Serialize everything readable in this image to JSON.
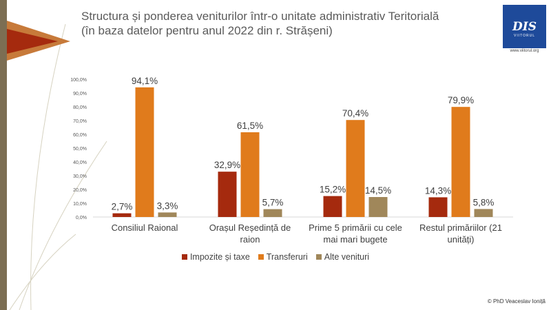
{
  "title": {
    "line1": "Structura și ponderea veniturilor într-o unitate administrativ Teritorială",
    "line2": "(în baza datelor pentru anul 2022 din r. Strășeni)"
  },
  "logo": {
    "text": "DIS",
    "sub": "VIITORUL",
    "url": "www.viitorul.org"
  },
  "footer": "© PhD Veaceslav Ioniță",
  "chart_data": {
    "type": "bar",
    "categories": [
      [
        "Consiliul Raional"
      ],
      [
        "Orașul Reședință de",
        "raion"
      ],
      [
        "Prime 5 primării cu cele",
        "mai mari bugete"
      ],
      [
        "Restul primăriilor (21",
        "unități)"
      ]
    ],
    "series": [
      {
        "name": "Impozite și taxe",
        "color": "#a52a0e",
        "values": [
          2.7,
          32.9,
          15.2,
          14.3
        ],
        "labels": [
          "2,7%",
          "32,9%",
          "15,2%",
          "14,3%"
        ]
      },
      {
        "name": "Transferuri",
        "color": "#e07b1c",
        "values": [
          94.1,
          61.5,
          70.4,
          79.9
        ],
        "labels": [
          "94,1%",
          "61,5%",
          "70,4%",
          "79,9%"
        ]
      },
      {
        "name": "Alte venituri",
        "color": "#a0875a",
        "values": [
          3.3,
          5.7,
          14.5,
          5.8
        ],
        "labels": [
          "3,3%",
          "5,7%",
          "14,5%",
          "5,8%"
        ]
      }
    ],
    "yticks": [
      "0,0%",
      "10,0%",
      "20,0%",
      "30,0%",
      "40,0%",
      "50,0%",
      "60,0%",
      "70,0%",
      "80,0%",
      "90,0%",
      "100,0%"
    ],
    "ylim": [
      0,
      100
    ],
    "grid": false,
    "legend": "bottom"
  }
}
